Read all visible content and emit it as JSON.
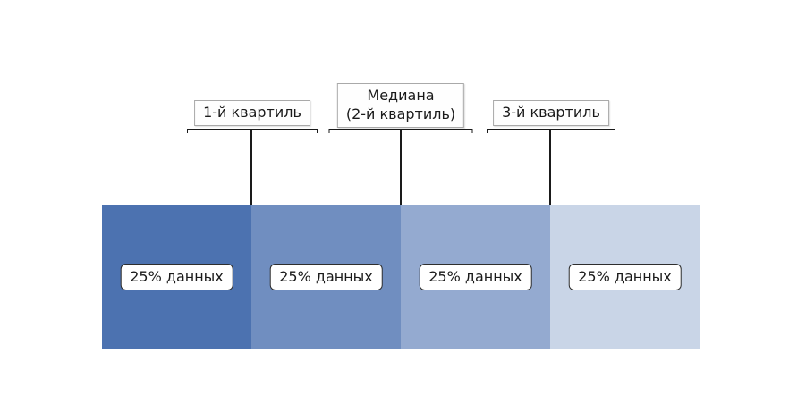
{
  "diagram": {
    "background": "#ffffff",
    "line_color": "#1a1a1a",
    "annotations": [
      {
        "id": "first-quartile",
        "lines": [
          "1-й квартиль"
        ]
      },
      {
        "id": "median",
        "lines": [
          "Медиана",
          "(2-й квартиль)"
        ]
      },
      {
        "id": "third-quartile",
        "lines": [
          "3-й квартиль"
        ]
      }
    ],
    "segments": [
      {
        "label": "25% данных",
        "color": "#4c72b0"
      },
      {
        "label": "25% данных",
        "color": "#708ec0"
      },
      {
        "label": "25% данных",
        "color": "#94aad0"
      },
      {
        "label": "25% данных",
        "color": "#c9d5e7"
      }
    ]
  }
}
